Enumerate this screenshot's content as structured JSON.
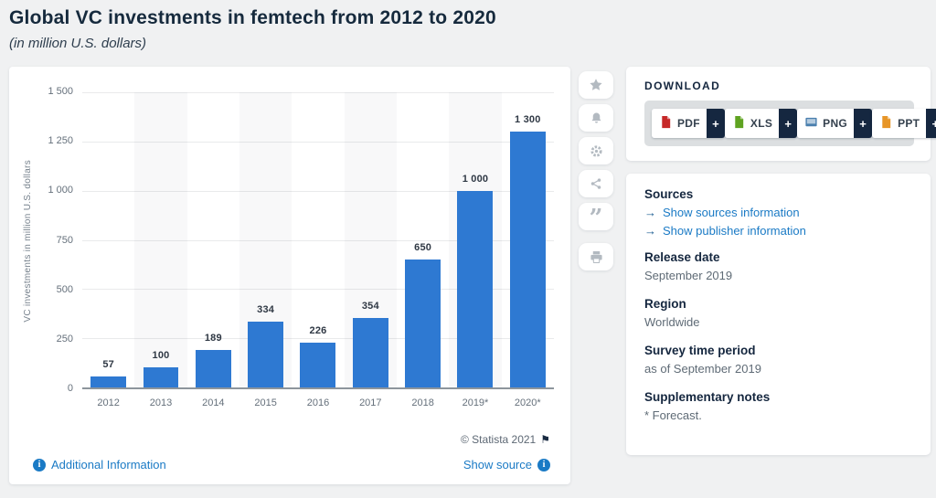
{
  "chart_data": {
    "type": "bar",
    "title": "Global VC investments in femtech from 2012 to 2020",
    "subtitle": "(in million U.S. dollars)",
    "categories": [
      "2012",
      "2013",
      "2014",
      "2015",
      "2016",
      "2017",
      "2018",
      "2019*",
      "2020*"
    ],
    "values": [
      57,
      100,
      189,
      334,
      226,
      354,
      650,
      1000,
      1300
    ],
    "value_labels": [
      "57",
      "100",
      "189",
      "334",
      "226",
      "354",
      "650",
      "1 000",
      "1 300"
    ],
    "xlabel": "",
    "ylabel": "VC investments in million U.S. dollars",
    "ylim": [
      0,
      1500
    ],
    "yticks": [
      0,
      250,
      500,
      750,
      1000,
      1250,
      1500
    ],
    "ytick_labels": [
      "0",
      "250",
      "500",
      "750",
      "1 000",
      "1 250",
      "1 500"
    ],
    "grid": true,
    "legend": "none",
    "bar_color": "#2e79d2",
    "alt_band": true
  },
  "chart_footer": {
    "copyright": "© Statista 2021",
    "flag_icon": "⚑",
    "additional_info_label": "Additional Information",
    "show_source_label": "Show source"
  },
  "action_rail": {
    "icons": [
      "favorite-star",
      "alert-bell",
      "settings-gear",
      "share-nodes",
      "cite-quote",
      "print"
    ]
  },
  "download": {
    "heading": "DOWNLOAD",
    "plus_label": "+",
    "buttons": [
      {
        "label": "PDF",
        "icon_color": "#c62828"
      },
      {
        "label": "XLS",
        "icon_color": "#5fa321"
      },
      {
        "label": "PNG",
        "icon_color": "#4a7fae"
      },
      {
        "label": "PPT",
        "icon_color": "#e79527"
      }
    ]
  },
  "sidebar": {
    "sources_heading": "Sources",
    "link_arrow": "→",
    "source_links": [
      "Show sources information",
      "Show publisher information"
    ],
    "sections": [
      {
        "heading": "Release date",
        "text": "September 2019"
      },
      {
        "heading": "Region",
        "text": "Worldwide"
      },
      {
        "heading": "Survey time period",
        "text": "as of September 2019"
      },
      {
        "heading": "Supplementary notes",
        "text": "* Forecast."
      }
    ]
  }
}
